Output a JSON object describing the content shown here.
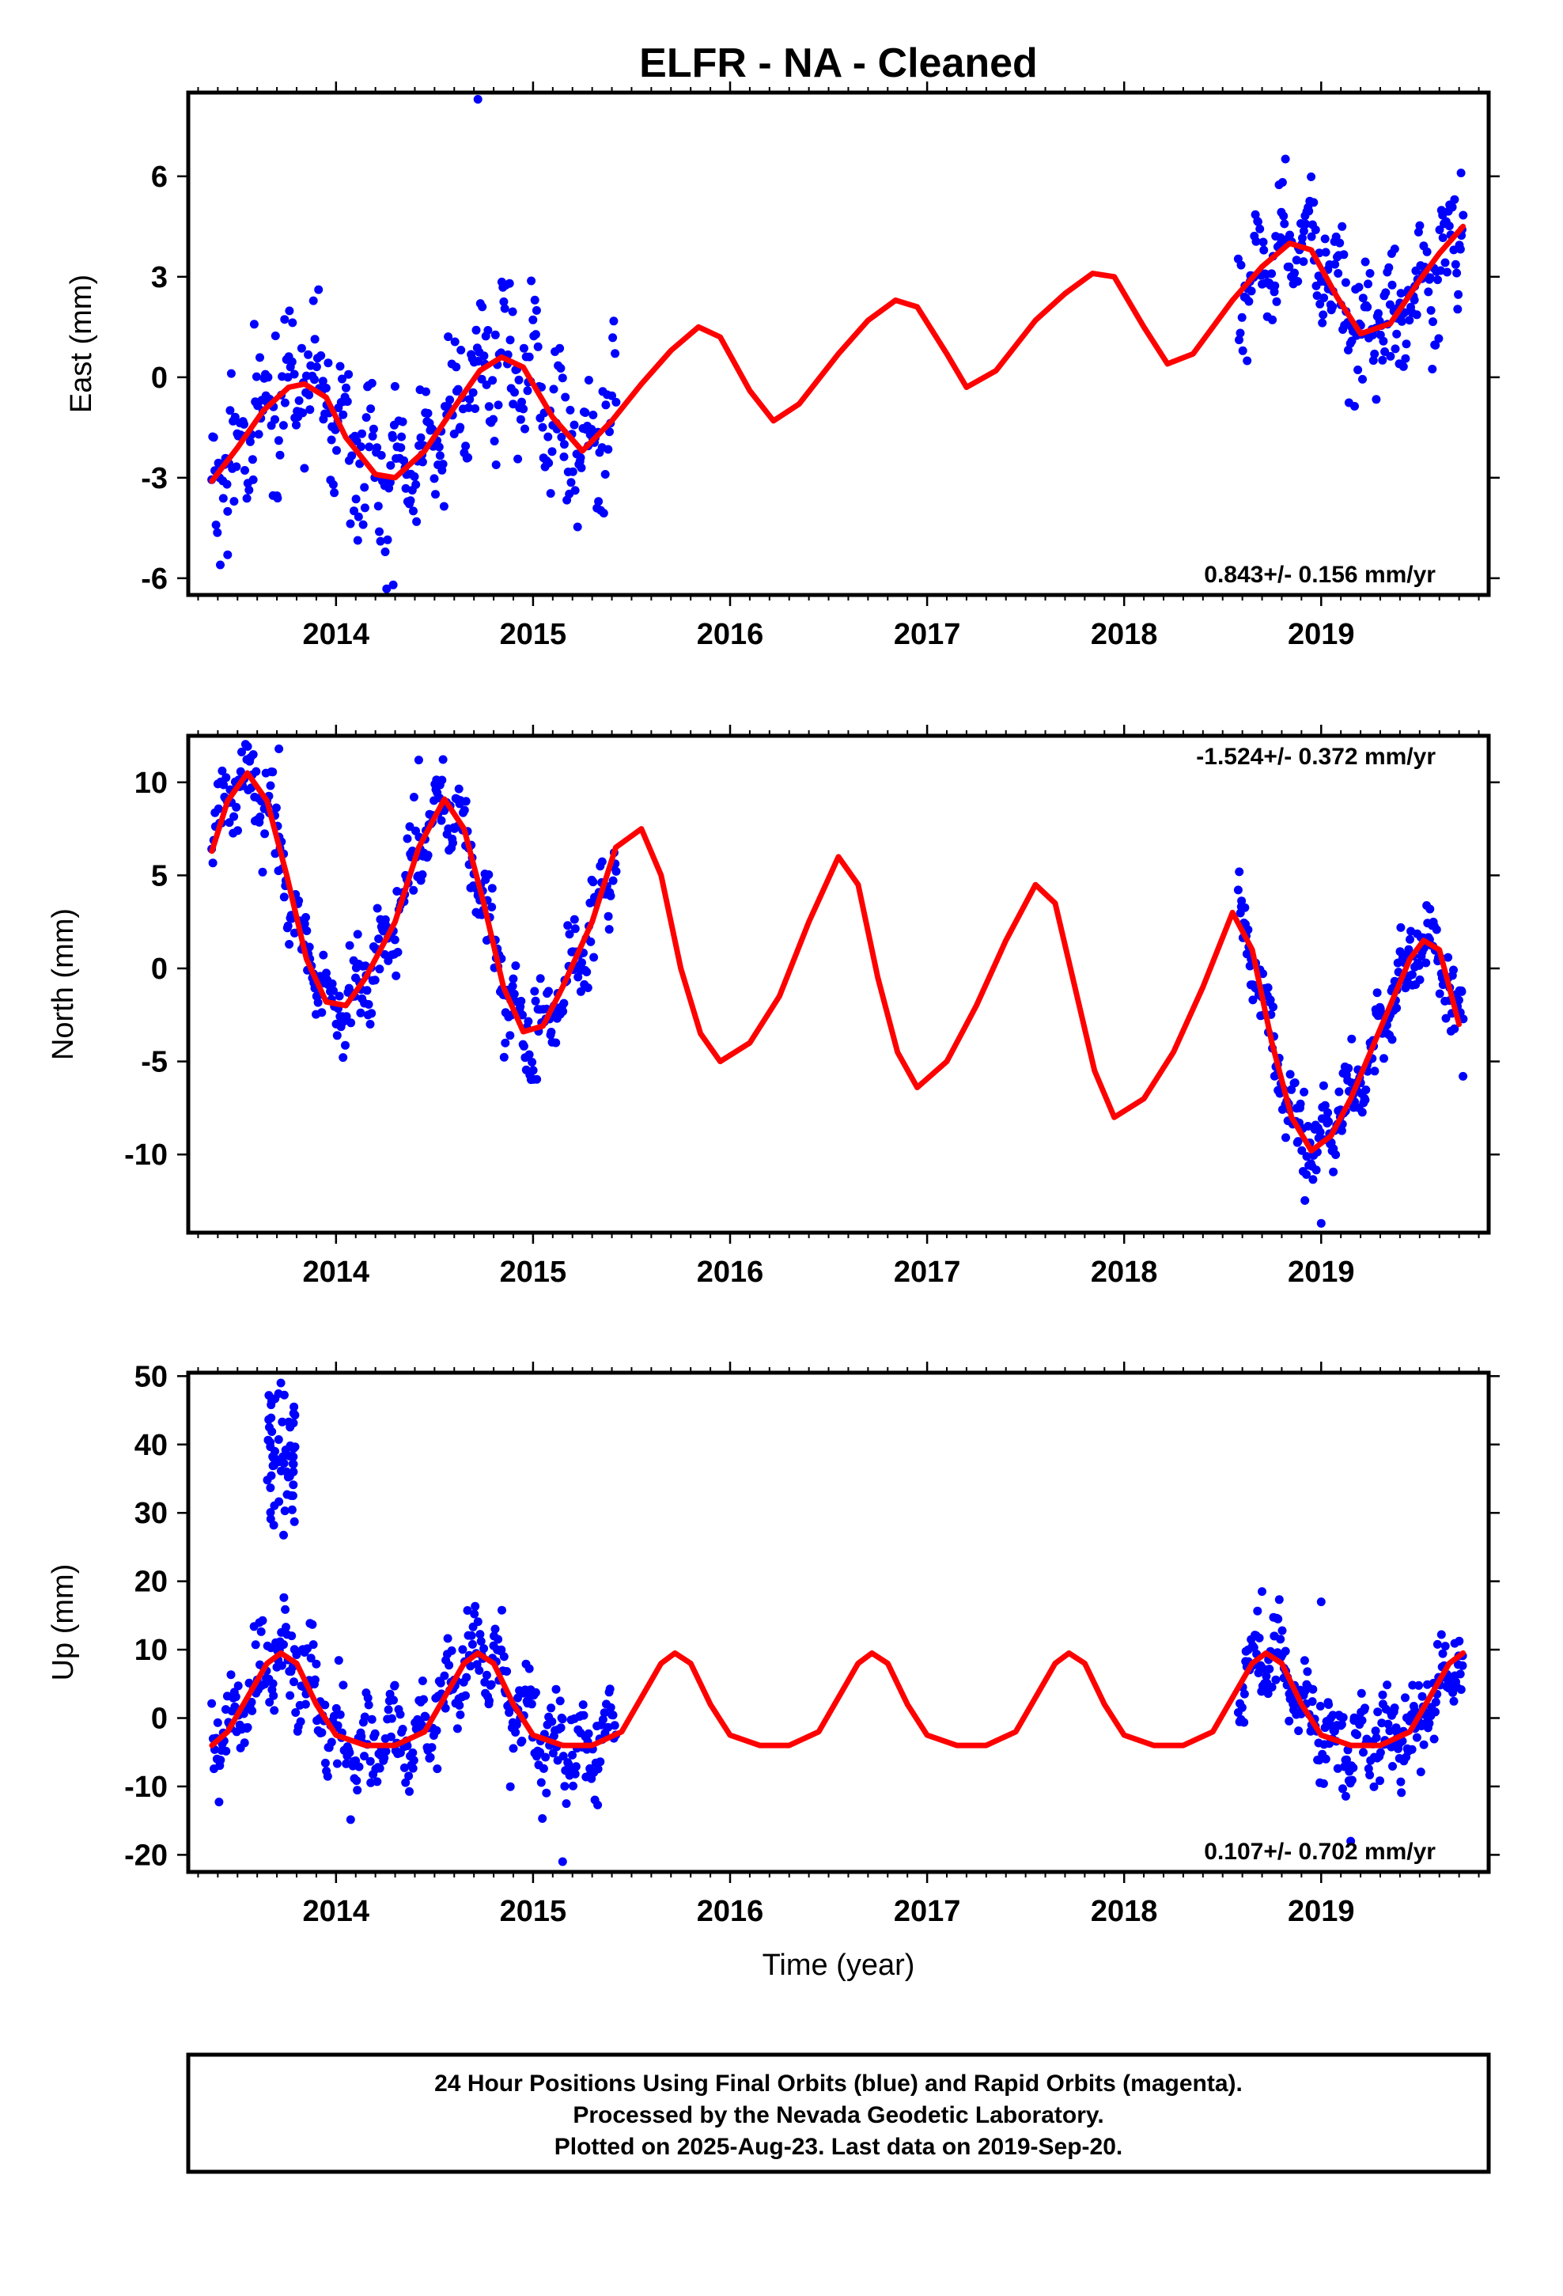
{
  "colors": {
    "final_orbits": "#0000ff",
    "rapid_orbits": "#ff00ff",
    "fit_model": "#ff0000",
    "axes": "#000000",
    "background": "#ffffff"
  },
  "title": "ELFR  - NA - Cleaned",
  "caption": {
    "lines": [
      "24 Hour Positions Using Final Orbits (blue) and Rapid Orbits (magenta).",
      "Processed by the Nevada Geodetic Laboratory.",
      "Plotted on 2025-Aug-23. Last data on 2019-Sep-20."
    ]
  },
  "chart_data": [
    {
      "type": "scatter",
      "component": "east",
      "ylabel": "East (mm)",
      "xlim": [
        2013.25,
        2019.85
      ],
      "ylim": [
        -6.5,
        8.5
      ],
      "x_ticks": [
        2014,
        2015,
        2016,
        2017,
        2018,
        2019
      ],
      "x_tick_labels": [
        "2014",
        "2015",
        "2016",
        "2017",
        "2018",
        "2019"
      ],
      "y_ticks": [
        -6,
        -3,
        0,
        3,
        6
      ],
      "y_tick_labels": [
        "-6",
        "-3",
        "0",
        "3",
        "6"
      ],
      "rate_label": "0.843+/- 0.156 mm/yr",
      "rate_position": "bottom-right",
      "grid": false,
      "fit": {
        "x": [
          2013.37,
          2013.5,
          2013.63,
          2013.76,
          2013.84,
          2013.95,
          2014.05,
          2014.2,
          2014.3,
          2014.45,
          2014.6,
          2014.73,
          2014.84,
          2014.95,
          2015.1,
          2015.25,
          2015.4,
          2015.55,
          2015.7,
          2015.84,
          2015.95,
          2016.1,
          2016.22,
          2016.35,
          2016.55,
          2016.7,
          2016.84,
          2016.95,
          2017.1,
          2017.2,
          2017.35,
          2017.55,
          2017.7,
          2017.84,
          2017.95,
          2018.1,
          2018.22,
          2018.35,
          2018.55,
          2018.7,
          2018.84,
          2018.95,
          2019.08,
          2019.2,
          2019.35,
          2019.5,
          2019.6,
          2019.72
        ],
        "y": [
          -3.1,
          -2.1,
          -1.0,
          -0.3,
          -0.2,
          -0.6,
          -1.8,
          -2.9,
          -3.0,
          -2.2,
          -0.9,
          0.2,
          0.6,
          0.3,
          -1.2,
          -2.2,
          -1.3,
          -0.2,
          0.8,
          1.5,
          1.2,
          -0.4,
          -1.3,
          -0.8,
          0.7,
          1.7,
          2.3,
          2.1,
          0.7,
          -0.3,
          0.2,
          1.7,
          2.5,
          3.1,
          3.0,
          1.5,
          0.4,
          0.7,
          2.3,
          3.3,
          4.0,
          3.8,
          2.4,
          1.3,
          1.6,
          2.9,
          3.7,
          4.5
        ]
      },
      "segments": [
        {
          "start": 2013.37,
          "end": 2015.42,
          "amp": 1.2,
          "sigma": 1.0,
          "seed": 11,
          "n": 380
        },
        {
          "start": 2018.58,
          "end": 2019.72,
          "amp": 0.9,
          "sigma": 0.9,
          "seed": 12,
          "n": 240
        }
      ],
      "outliers": [
        {
          "x": 2014.72,
          "y": 8.3
        },
        {
          "x": 2014.29,
          "y": -6.2
        },
        {
          "x": 2013.45,
          "y": -5.3
        },
        {
          "x": 2019.71,
          "y": 6.1
        }
      ]
    },
    {
      "type": "scatter",
      "component": "north",
      "ylabel": "North (mm)",
      "xlim": [
        2013.25,
        2019.85
      ],
      "ylim": [
        -14.2,
        12.5
      ],
      "x_ticks": [
        2014,
        2015,
        2016,
        2017,
        2018,
        2019
      ],
      "x_tick_labels": [
        "2014",
        "2015",
        "2016",
        "2017",
        "2018",
        "2019"
      ],
      "y_ticks": [
        -10,
        -5,
        0,
        5,
        10
      ],
      "y_tick_labels": [
        "-10",
        "-5",
        "0",
        "5",
        "10"
      ],
      "rate_label": "-1.524+/- 0.372 mm/yr",
      "rate_position": "top-right",
      "grid": false,
      "fit": {
        "x": [
          2013.37,
          2013.45,
          2013.55,
          2013.65,
          2013.75,
          2013.85,
          2013.95,
          2014.05,
          2014.15,
          2014.3,
          2014.42,
          2014.55,
          2014.65,
          2014.75,
          2014.85,
          2014.95,
          2015.05,
          2015.15,
          2015.3,
          2015.42,
          2015.55,
          2015.65,
          2015.75,
          2015.85,
          2015.95,
          2016.1,
          2016.25,
          2016.4,
          2016.55,
          2016.65,
          2016.75,
          2016.85,
          2016.95,
          2017.1,
          2017.25,
          2017.4,
          2017.55,
          2017.65,
          2017.75,
          2017.85,
          2017.95,
          2018.1,
          2018.25,
          2018.4,
          2018.55,
          2018.65,
          2018.75,
          2018.85,
          2018.95,
          2019.05,
          2019.15,
          2019.25,
          2019.35,
          2019.45,
          2019.52,
          2019.6,
          2019.7
        ],
        "y": [
          6.3,
          9.0,
          10.5,
          9.0,
          5.0,
          0.5,
          -1.8,
          -2.0,
          -0.5,
          2.5,
          6.5,
          9.1,
          7.5,
          3.5,
          -1.0,
          -3.4,
          -3.1,
          -1.0,
          2.5,
          6.5,
          7.5,
          5.0,
          0.0,
          -3.5,
          -5.0,
          -4.0,
          -1.5,
          2.5,
          6.0,
          4.5,
          -0.5,
          -4.5,
          -6.4,
          -5.0,
          -2.0,
          1.5,
          4.5,
          3.5,
          -1.0,
          -5.5,
          -8.0,
          -7.0,
          -4.5,
          -1.0,
          3.0,
          1.0,
          -4.0,
          -8.0,
          -9.8,
          -9.0,
          -7.0,
          -4.5,
          -2.0,
          0.5,
          1.5,
          1.0,
          -3.0
        ]
      },
      "segments": [
        {
          "start": 2013.37,
          "end": 2015.42,
          "amp": 1.2,
          "sigma": 1.0,
          "seed": 21,
          "n": 420
        },
        {
          "start": 2018.58,
          "end": 2019.72,
          "amp": 1.0,
          "sigma": 0.9,
          "seed": 22,
          "n": 260
        }
      ],
      "outliers": [
        {
          "x": 2013.71,
          "y": 11.8
        },
        {
          "x": 2014.42,
          "y": 11.2
        },
        {
          "x": 2019.0,
          "y": -13.7
        },
        {
          "x": 2019.72,
          "y": -5.8
        }
      ]
    },
    {
      "type": "scatter",
      "component": "up",
      "ylabel": "Up (mm)",
      "xlim": [
        2013.25,
        2019.85
      ],
      "ylim": [
        -22.5,
        50.5
      ],
      "x_ticks": [
        2014,
        2015,
        2016,
        2017,
        2018,
        2019
      ],
      "x_tick_labels": [
        "2014",
        "2015",
        "2016",
        "2017",
        "2018",
        "2019"
      ],
      "y_ticks": [
        -20,
        -10,
        0,
        10,
        20,
        30,
        40,
        50
      ],
      "y_tick_labels": [
        "-20",
        "-10",
        "0",
        "10",
        "20",
        "30",
        "40",
        "50"
      ],
      "rate_label": "0.107+/- 0.702 mm/yr",
      "rate_position": "bottom-right",
      "grid": false,
      "xlabel": "Time (year)",
      "fit": {
        "x": [
          2013.37,
          2013.45,
          2013.55,
          2013.65,
          2013.72,
          2013.8,
          2013.9,
          2014.0,
          2014.15,
          2014.3,
          2014.45,
          2014.55,
          2014.65,
          2014.72,
          2014.8,
          2014.9,
          2015.0,
          2015.15,
          2015.3,
          2015.45,
          2015.55,
          2015.65,
          2015.72,
          2015.8,
          2015.9,
          2016.0,
          2016.15,
          2016.3,
          2016.45,
          2016.55,
          2016.65,
          2016.72,
          2016.8,
          2016.9,
          2017.0,
          2017.15,
          2017.3,
          2017.45,
          2017.55,
          2017.65,
          2017.72,
          2017.8,
          2017.9,
          2018.0,
          2018.15,
          2018.3,
          2018.45,
          2018.55,
          2018.65,
          2018.72,
          2018.8,
          2018.9,
          2019.0,
          2019.15,
          2019.3,
          2019.45,
          2019.55,
          2019.65,
          2019.72
        ],
        "y": [
          -4.0,
          -2.0,
          3.0,
          8.0,
          9.5,
          8.0,
          2.0,
          -2.5,
          -4.0,
          -4.0,
          -2.0,
          3.0,
          8.0,
          9.5,
          8.0,
          2.0,
          -2.5,
          -4.0,
          -4.0,
          -2.0,
          3.0,
          8.0,
          9.5,
          8.0,
          2.0,
          -2.5,
          -4.0,
          -4.0,
          -2.0,
          3.0,
          8.0,
          9.5,
          8.0,
          2.0,
          -2.5,
          -4.0,
          -4.0,
          -2.0,
          3.0,
          8.0,
          9.5,
          8.0,
          2.0,
          -2.5,
          -4.0,
          -4.0,
          -2.0,
          3.0,
          8.0,
          9.5,
          8.0,
          2.0,
          -2.5,
          -4.0,
          -4.0,
          -2.0,
          3.0,
          8.0,
          9.5
        ]
      },
      "segments": [
        {
          "start": 2013.37,
          "end": 2015.42,
          "amp": 3.5,
          "sigma": 3.2,
          "seed": 31,
          "n": 420
        },
        {
          "start": 2018.58,
          "end": 2019.72,
          "amp": 3.0,
          "sigma": 3.0,
          "seed": 32,
          "n": 260
        }
      ],
      "spike": {
        "start": 2013.65,
        "end": 2013.8,
        "center": 38,
        "spread": 5,
        "n": 60,
        "seed": 33
      },
      "outliers": [
        {
          "x": 2013.72,
          "y": 49
        },
        {
          "x": 2015.15,
          "y": -21
        },
        {
          "x": 2019.15,
          "y": -18
        },
        {
          "x": 2018.7,
          "y": 18.5
        },
        {
          "x": 2019.0,
          "y": 17
        }
      ]
    }
  ]
}
